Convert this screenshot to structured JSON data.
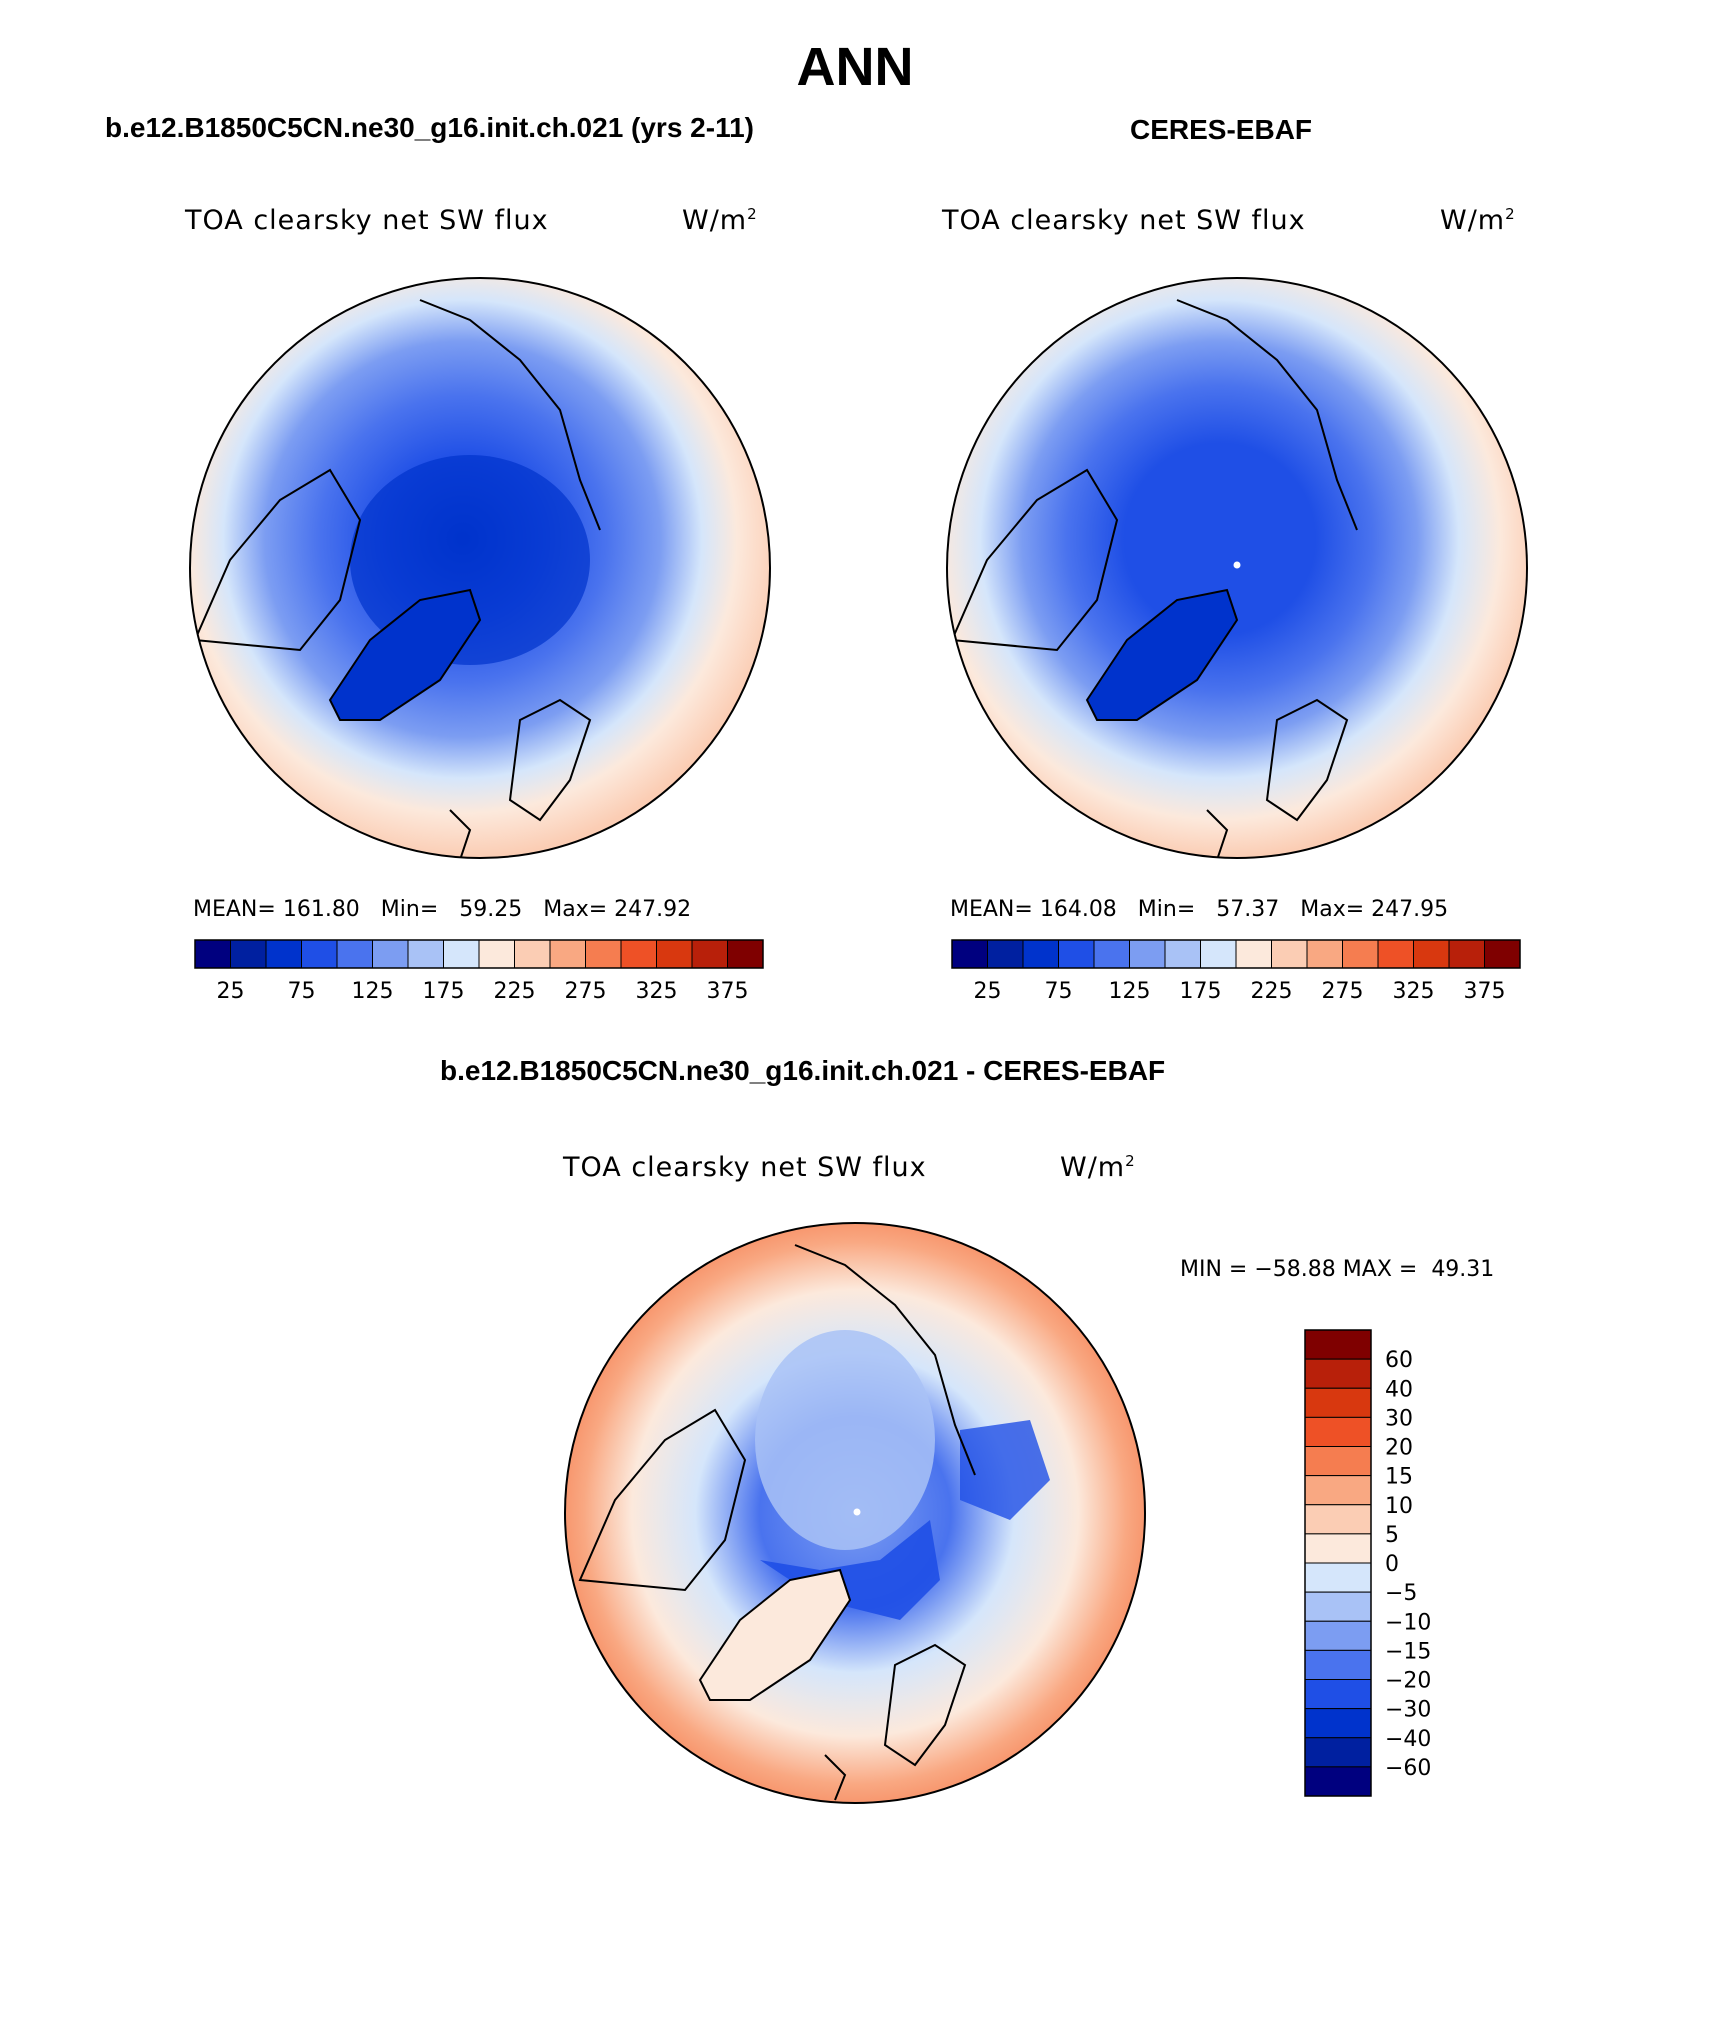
{
  "title": "ANN",
  "panels": [
    {
      "id": "model",
      "header": "b.e12.B1850C5CN.ne30_g16.init.ch.021 (yrs 2-11)",
      "variable": "TOA clearsky net SW flux",
      "units_base": "W/m",
      "units_exp": "2",
      "stats": {
        "mean_label": "MEAN=",
        "mean": "161.80",
        "min_label": "Min=",
        "min": "59.25",
        "max_label": "Max=",
        "max": "247.92"
      }
    },
    {
      "id": "obs",
      "header": "CERES-EBAF",
      "variable": "TOA clearsky net SW flux",
      "units_base": "W/m",
      "units_exp": "2",
      "stats": {
        "mean_label": "MEAN=",
        "mean": "164.08",
        "min_label": "Min=",
        "min": "57.37",
        "max_label": "Max=",
        "max": "247.95"
      }
    },
    {
      "id": "diff",
      "header": "b.e12.B1850C5CN.ne30_g16.init.ch.021 - CERES-EBAF",
      "variable": "TOA clearsky net SW flux",
      "units_base": "W/m",
      "units_exp": "2",
      "stats": {
        "min_label": "MIN =",
        "min": "−58.88",
        "max_label": "MAX =",
        "max": "49.31"
      }
    }
  ],
  "abs_colorbar": {
    "colors": [
      "#00007f",
      "#0020a0",
      "#0033cc",
      "#1f4fe6",
      "#4a73ee",
      "#7c9df2",
      "#a9c2f6",
      "#d5e6fb",
      "#fce9dc",
      "#fbcdb4",
      "#f9a882",
      "#f57d50",
      "#ee5126",
      "#d8380f",
      "#b8200a",
      "#7f0000"
    ],
    "ticks": [
      "25",
      "75",
      "125",
      "175",
      "225",
      "275",
      "325",
      "375"
    ]
  },
  "diff_colorbar": {
    "colors": [
      "#00007f",
      "#0020a0",
      "#0033cc",
      "#1f4fe6",
      "#4a73ee",
      "#7c9df2",
      "#a9c2f6",
      "#d5e6fb",
      "#fce9dc",
      "#fbcdb4",
      "#f9a882",
      "#f57d50",
      "#ee5126",
      "#d8380f",
      "#b8200a",
      "#7f0000"
    ],
    "ticks": [
      "60",
      "40",
      "30",
      "20",
      "15",
      "10",
      "5",
      "0",
      "−5",
      "−10",
      "−15",
      "−20",
      "−30",
      "−40",
      "−60"
    ]
  }
}
